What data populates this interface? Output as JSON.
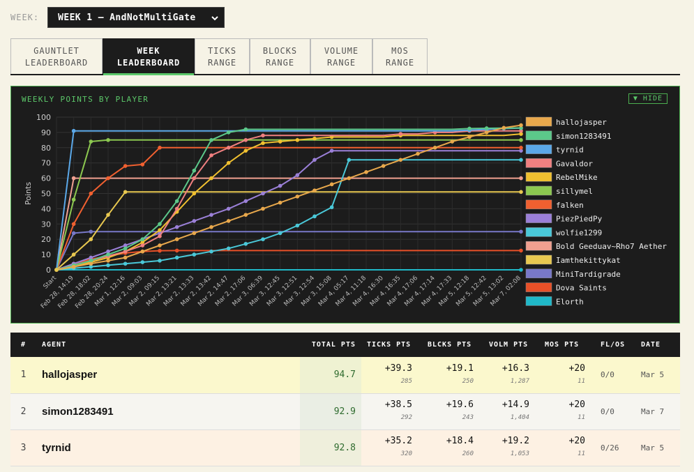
{
  "week": {
    "label": "WEEK:",
    "selected": "WEEK 1 — AndNotMultiGate"
  },
  "tabs": [
    {
      "line1": "GAUNTLET",
      "line2": "LEADERBOARD",
      "active": false
    },
    {
      "line1": "WEEK",
      "line2": "LEADERBOARD",
      "active": true
    },
    {
      "line1": "TICKS",
      "line2": "RANGE",
      "active": false
    },
    {
      "line1": "BLOCKS",
      "line2": "RANGE",
      "active": false
    },
    {
      "line1": "VOLUME",
      "line2": "RANGE",
      "active": false
    },
    {
      "line1": "MOS",
      "line2": "RANGE",
      "active": false
    }
  ],
  "chart_title": "WEEKLY POINTS BY PLAYER",
  "hide_label": "▼ HIDE",
  "chart_data": {
    "type": "line",
    "ylabel": "Points",
    "ylim": [
      0,
      100
    ],
    "yticks": [
      0,
      10,
      20,
      30,
      40,
      50,
      60,
      70,
      80,
      90,
      100
    ],
    "categories": [
      "Start",
      "Feb 28, 14:19",
      "Feb 28, 18:02",
      "Feb 28, 20:24",
      "Mar 1, 12:16",
      "Mar 2, 09:03",
      "Mar 2, 09:15",
      "Mar 2, 13:21",
      "Mar 2, 13:33",
      "Mar 2, 13:42",
      "Mar 2, 14:47",
      "Mar 2, 17:06",
      "Mar 3, 06:39",
      "Mar 3, 12:45",
      "Mar 3, 12:51",
      "Mar 3, 12:54",
      "Mar 3, 15:08",
      "Mar 4, 05:17",
      "Mar 4, 11:18",
      "Mar 4, 16:30",
      "Mar 4, 16:35",
      "Mar 4, 17:06",
      "Mar 4, 17:14",
      "Mar 4, 17:33",
      "Mar 5, 12:18",
      "Mar 5, 12:42",
      "Mar 5, 13:02",
      "Mar 7, 02:08"
    ],
    "series": [
      {
        "name": "hallojasper",
        "color": "#e8a84c",
        "values": [
          0,
          2,
          4,
          6,
          8,
          12,
          16,
          20,
          24,
          28,
          32,
          36,
          40,
          44,
          48,
          52,
          56,
          60,
          64,
          68,
          72,
          76,
          80,
          84,
          87,
          90,
          93,
          94.7
        ]
      },
      {
        "name": "simon1283491",
        "color": "#5cc88a",
        "values": [
          0,
          3,
          6,
          10,
          14,
          20,
          30,
          45,
          65,
          85,
          90,
          92,
          92,
          92,
          92,
          92,
          92,
          92,
          92,
          92,
          92,
          92,
          92,
          92,
          92.5,
          92.7,
          92.8,
          92.9
        ]
      },
      {
        "name": "tyrnid",
        "color": "#5ba8e8",
        "values": [
          0,
          91,
          91,
          91,
          91,
          91,
          91,
          91,
          91,
          91,
          91,
          91,
          91,
          91,
          91,
          91,
          91,
          91,
          91,
          91,
          91,
          91,
          91,
          91,
          91.5,
          92,
          92.5,
          92.8
        ]
      },
      {
        "name": "Gavaldor",
        "color": "#f08080",
        "values": [
          0,
          3,
          6,
          9,
          12,
          16,
          22,
          40,
          60,
          75,
          80,
          85,
          88,
          88,
          88,
          88,
          88,
          88,
          88,
          88,
          89,
          89,
          90,
          90,
          91,
          91,
          91,
          91
        ]
      },
      {
        "name": "RebelMike",
        "color": "#f0c030",
        "values": [
          0,
          2,
          5,
          8,
          12,
          18,
          26,
          38,
          50,
          60,
          70,
          78,
          83,
          84,
          85,
          86,
          87,
          87,
          87,
          87,
          88,
          88,
          88,
          88,
          88,
          88,
          88,
          89
        ]
      },
      {
        "name": "sillymel",
        "color": "#8cc850",
        "values": [
          0,
          46,
          84,
          85,
          85,
          85,
          85,
          85,
          85,
          85,
          85,
          85,
          85,
          85,
          85,
          85,
          85,
          85,
          85,
          85,
          85,
          85,
          85,
          85,
          85,
          85,
          85,
          85
        ]
      },
      {
        "name": "falken",
        "color": "#f06030",
        "values": [
          0,
          30,
          50,
          60,
          68,
          69,
          80,
          80,
          80,
          80,
          80,
          80,
          80,
          80,
          80,
          80,
          80,
          80,
          80,
          80,
          80,
          80,
          80,
          80,
          80,
          80,
          80,
          80
        ]
      },
      {
        "name": "PiezPiedPy",
        "color": "#9b80d8",
        "values": [
          0,
          4,
          8,
          12,
          16,
          20,
          24,
          28,
          32,
          36,
          40,
          45,
          50,
          55,
          62,
          72,
          78,
          78,
          78,
          78,
          78,
          78,
          78,
          78,
          78,
          78,
          78,
          78
        ]
      },
      {
        "name": "wolfie1299",
        "color": "#4ac8d8",
        "values": [
          0,
          1,
          2,
          3,
          4,
          5,
          6,
          8,
          10,
          12,
          14,
          17,
          20,
          24,
          29,
          35,
          41,
          72,
          72,
          72,
          72,
          72,
          72,
          72,
          72,
          72,
          72,
          72
        ]
      },
      {
        "name": "Bold Geeduav~Rho7 Aether",
        "color": "#f0a090",
        "values": [
          0,
          60,
          60,
          60,
          60,
          60,
          60,
          60,
          60,
          60,
          60,
          60,
          60,
          60,
          60,
          60,
          60,
          60,
          60,
          60,
          60,
          60,
          60,
          60,
          60,
          60,
          60,
          60
        ]
      },
      {
        "name": "Iamthekittykat",
        "color": "#e8c850",
        "values": [
          0,
          10,
          20,
          36,
          51,
          51,
          51,
          51,
          51,
          51,
          51,
          51,
          51,
          51,
          51,
          51,
          51,
          51,
          51,
          51,
          51,
          51,
          51,
          51,
          51,
          51,
          51,
          51
        ]
      },
      {
        "name": "MiniTardigrade",
        "color": "#7878c8",
        "values": [
          0,
          24,
          25,
          25,
          25,
          25,
          25,
          25,
          25,
          25,
          25,
          25,
          25,
          25,
          25,
          25,
          25,
          25,
          25,
          25,
          25,
          25,
          25,
          25,
          25,
          25,
          25,
          25
        ]
      },
      {
        "name": "Dova Saints",
        "color": "#e85028",
        "values": [
          0,
          4,
          7,
          9,
          11,
          12,
          12.5,
          12.6,
          12.6,
          12.6,
          12.6,
          12.6,
          12.6,
          12.6,
          12.6,
          12.6,
          12.6,
          12.6,
          12.6,
          12.6,
          12.6,
          12.6,
          12.6,
          12.6,
          12.6,
          12.6,
          12.6,
          12.6
        ]
      },
      {
        "name": "Elorth",
        "color": "#20b8c8",
        "values": [
          0,
          0,
          0,
          0,
          0,
          0,
          0,
          0,
          0,
          0,
          0,
          0,
          0,
          0,
          0,
          0,
          0,
          0,
          0,
          0,
          0,
          0,
          0,
          0,
          0,
          0,
          0,
          0
        ]
      }
    ]
  },
  "table": {
    "headers": {
      "rank": "#",
      "agent": "AGENT",
      "total": "TOTAL PTS",
      "ticks": "TICKS PTS",
      "blocks": "BLCKS PTS",
      "volume": "VOLM PTS",
      "mos": "MOS PTS",
      "flos": "FL/OS",
      "date": "DATE"
    },
    "rows": [
      {
        "rank": "1",
        "agent": "hallojasper",
        "total": "94.7",
        "ticks": "+39.3",
        "ticks_sub": "285",
        "blocks": "+19.1",
        "blocks_sub": "250",
        "volume": "+16.3",
        "volume_sub": "1,287",
        "mos": "+20",
        "mos_sub": "11",
        "flos": "0/0",
        "date": "Mar 5"
      },
      {
        "rank": "2",
        "agent": "simon1283491",
        "total": "92.9",
        "ticks": "+38.5",
        "ticks_sub": "292",
        "blocks": "+19.6",
        "blocks_sub": "243",
        "volume": "+14.9",
        "volume_sub": "1,404",
        "mos": "+20",
        "mos_sub": "11",
        "flos": "0/0",
        "date": "Mar 7"
      },
      {
        "rank": "3",
        "agent": "tyrnid",
        "total": "92.8",
        "ticks": "+35.2",
        "ticks_sub": "320",
        "blocks": "+18.4",
        "blocks_sub": "260",
        "volume": "+19.2",
        "volume_sub": "1,053",
        "mos": "+20",
        "mos_sub": "11",
        "flos": "0/26",
        "date": "Mar 5"
      }
    ]
  }
}
